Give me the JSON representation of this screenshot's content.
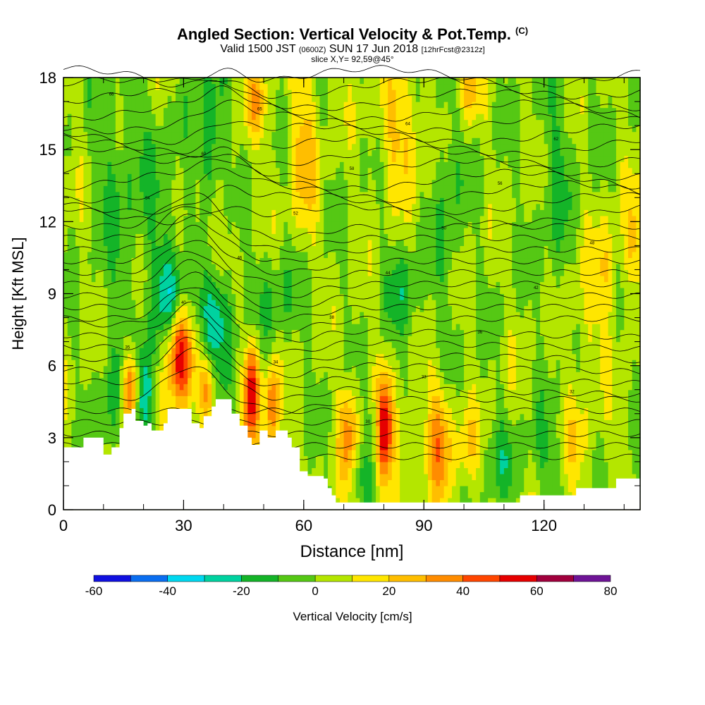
{
  "header": {
    "title_main": "Angled Section: Vertical Velocity & Pot.Temp.",
    "title_unit": "(C)",
    "valid_prefix": "Valid 1500 JST",
    "valid_zulu": "(0600Z)",
    "valid_date": "SUN 17 Jun 2018",
    "forecast_tag": "[12hrFcst@2312z]",
    "slice": "slice X,Y= 92,59@45°"
  },
  "chart_data": {
    "type": "heatmap",
    "xlabel": "Distance [nm]",
    "ylabel": "Height [Kft MSL]",
    "xlim": [
      0,
      144
    ],
    "ylim": [
      0,
      18
    ],
    "xticks": [
      0,
      30,
      60,
      90,
      120
    ],
    "yticks": [
      0,
      3,
      6,
      9,
      12,
      15,
      18
    ],
    "colorbar": {
      "label": "Vertical Velocity [cm/s]",
      "levels": [
        -60,
        -50,
        -40,
        -30,
        -20,
        -10,
        0,
        10,
        20,
        30,
        40,
        50,
        60,
        70,
        80
      ],
      "tick_labels": [
        "-60",
        "-40",
        "-20",
        "0",
        "20",
        "40",
        "60",
        "80"
      ],
      "colors": [
        "#1010e0",
        "#0a6ef0",
        "#00d8f0",
        "#00d2a0",
        "#14b428",
        "#55c814",
        "#b4e600",
        "#ffe600",
        "#ffbe00",
        "#ff8c00",
        "#ff4600",
        "#e60000",
        "#a0003c",
        "#6e1496"
      ]
    },
    "terrain": [
      [
        0,
        2.6
      ],
      [
        5,
        2.6
      ],
      [
        5,
        3.0
      ],
      [
        10,
        3.0
      ],
      [
        10,
        2.3
      ],
      [
        12,
        2.6
      ],
      [
        14,
        3.4
      ],
      [
        15,
        4.0
      ],
      [
        17,
        4.2
      ],
      [
        18,
        3.7
      ],
      [
        20,
        3.5
      ],
      [
        21,
        3.6
      ],
      [
        22,
        3.3
      ],
      [
        25,
        3.6
      ],
      [
        26,
        4.2
      ],
      [
        31,
        4.2
      ],
      [
        32,
        3.6
      ],
      [
        34,
        3.4
      ],
      [
        35,
        3.9
      ],
      [
        37,
        4.3
      ],
      [
        38,
        4.6
      ],
      [
        41,
        4.6
      ],
      [
        42,
        4.0
      ],
      [
        44,
        3.5
      ],
      [
        46,
        3.0
      ],
      [
        47,
        2.7
      ],
      [
        49,
        3.3
      ],
      [
        51,
        3.0
      ],
      [
        53,
        3.3
      ],
      [
        56,
        3.0
      ],
      [
        57,
        2.6
      ],
      [
        59,
        1.6
      ],
      [
        60,
        1.6
      ],
      [
        61,
        1.4
      ],
      [
        65,
        1.3
      ],
      [
        66,
        0.9
      ],
      [
        67,
        0.6
      ],
      [
        68,
        0.3
      ],
      [
        113,
        0.3
      ],
      [
        114,
        0.6
      ],
      [
        125,
        0.6
      ],
      [
        128,
        0.9
      ],
      [
        137,
        0.9
      ],
      [
        138,
        1.3
      ],
      [
        144,
        1.3
      ]
    ],
    "features": [
      {
        "x": 17.0,
        "y": 5.0,
        "sx": 1.5,
        "sy": 1.2,
        "w": 55
      },
      {
        "x": 20.0,
        "y": 4.7,
        "sx": 1.8,
        "sy": 1.6,
        "w": -40
      },
      {
        "x": 12.0,
        "y": 4.5,
        "sx": 2.0,
        "sy": 1.8,
        "w": -15
      },
      {
        "x": 29.0,
        "y": 6.5,
        "sx": 2.3,
        "sy": 1.6,
        "w": 55
      },
      {
        "x": 27.0,
        "y": 8.8,
        "sx": 2.8,
        "sy": 1.2,
        "w": -25
      },
      {
        "x": 38.0,
        "y": 7.8,
        "sx": 3.5,
        "sy": 1.5,
        "w": -30
      },
      {
        "x": 37.0,
        "y": 15.0,
        "sx": 2.0,
        "sy": 2.6,
        "w": -25
      },
      {
        "x": 37.0,
        "y": 11.5,
        "sx": 2.0,
        "sy": 1.6,
        "w": 20
      },
      {
        "x": 47.0,
        "y": 5.0,
        "sx": 1.3,
        "sy": 1.5,
        "w": 60
      },
      {
        "x": 52.0,
        "y": 4.3,
        "sx": 1.2,
        "sy": 1.3,
        "w": 40
      },
      {
        "x": 36.0,
        "y": 5.0,
        "sx": 1.3,
        "sy": 1.1,
        "w": 35
      },
      {
        "x": 80.0,
        "y": 3.2,
        "sx": 1.6,
        "sy": 1.6,
        "w": 60
      },
      {
        "x": 94.0,
        "y": 3.0,
        "sx": 2.3,
        "sy": 1.8,
        "w": 35
      },
      {
        "x": 71.0,
        "y": 3.1,
        "sx": 1.6,
        "sy": 1.6,
        "w": 30
      },
      {
        "x": 86.0,
        "y": 2.5,
        "sx": 1.8,
        "sy": 1.5,
        "w": 15
      },
      {
        "x": 78.0,
        "y": 3.4,
        "sx": 1.2,
        "sy": 1.3,
        "w": -20
      },
      {
        "x": 101.0,
        "y": 2.6,
        "sx": 1.8,
        "sy": 1.2,
        "w": 15
      },
      {
        "x": 74.0,
        "y": 1.5,
        "sx": 2.0,
        "sy": 0.8,
        "w": -12
      },
      {
        "x": 84.0,
        "y": 16.0,
        "sx": 4.0,
        "sy": 2.0,
        "w": 20
      },
      {
        "x": 60.0,
        "y": 15.0,
        "sx": 2.5,
        "sy": 3.0,
        "w": 20
      },
      {
        "x": 48.0,
        "y": 17.0,
        "sx": 2.0,
        "sy": 1.2,
        "w": 22
      },
      {
        "x": 101.0,
        "y": 17.5,
        "sx": 2.0,
        "sy": 1.0,
        "w": 22
      },
      {
        "x": 142.0,
        "y": 11.0,
        "sx": 1.5,
        "sy": 1.5,
        "w": 22
      },
      {
        "x": 136.0,
        "y": 10.0,
        "sx": 1.8,
        "sy": 1.5,
        "w": 15
      },
      {
        "x": 14.0,
        "y": 14.0,
        "sx": 4.0,
        "sy": 4.0,
        "w": -12
      },
      {
        "x": 25.0,
        "y": 12.0,
        "sx": 4.0,
        "sy": 3.0,
        "w": -12
      },
      {
        "x": 96.0,
        "y": 13.0,
        "sx": 2.5,
        "sy": 5.0,
        "w": -12
      },
      {
        "x": 123.0,
        "y": 14.0,
        "sx": 3.0,
        "sy": 4.0,
        "w": -12
      },
      {
        "x": 85.0,
        "y": 9.0,
        "sx": 3.0,
        "sy": 1.5,
        "w": -15
      },
      {
        "x": 53.0,
        "y": 9.0,
        "sx": 5.0,
        "sy": 1.5,
        "w": -12
      },
      {
        "x": 110.0,
        "y": 2.0,
        "sx": 3.0,
        "sy": 1.2,
        "w": -12
      },
      {
        "x": 120.0,
        "y": 2.3,
        "sx": 3.0,
        "sy": 1.2,
        "w": -10
      },
      {
        "x": 128.0,
        "y": 3.0,
        "sx": 2.5,
        "sy": 1.6,
        "w": 12
      },
      {
        "x": 131.0,
        "y": 8.0,
        "sx": 3.0,
        "sy": 2.0,
        "w": 12
      }
    ],
    "theta_contours": {
      "color": "#000000",
      "lines_count": 34,
      "labels": [
        "66",
        "65",
        "64",
        "62",
        "60",
        "58",
        "56",
        "54",
        "52",
        "50",
        "48",
        "46",
        "44",
        "42",
        "40",
        "38",
        "36",
        "35",
        "34",
        "33",
        "32",
        "31",
        "30"
      ]
    }
  }
}
